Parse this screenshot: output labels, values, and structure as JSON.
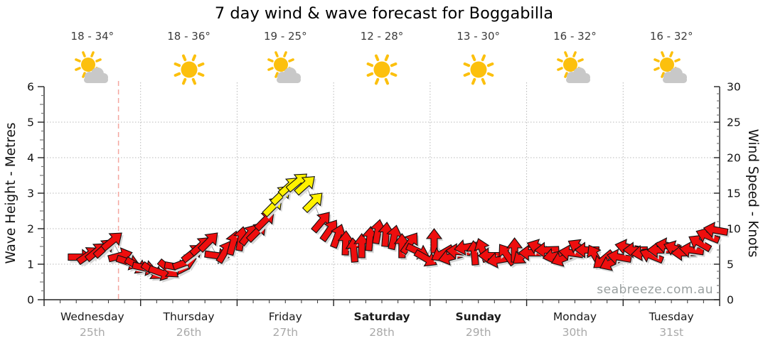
{
  "title": "7 day wind & wave forecast for Boggabilla",
  "watermark": "seabreeze.com.au",
  "axes": {
    "left_title": "Wave Height - Metres",
    "right_title": "Wind Speed - Knots",
    "left_ticks": [
      0,
      1,
      2,
      3,
      4,
      5,
      6
    ],
    "right_ticks": [
      0,
      5,
      10,
      15,
      20,
      25,
      30
    ]
  },
  "days": [
    {
      "name": "Wednesday",
      "date": "25th",
      "temp": "18 - 34°",
      "weather": "partly-cloudy",
      "weekend": false
    },
    {
      "name": "Thursday",
      "date": "26th",
      "temp": "18 - 36°",
      "weather": "sunny",
      "weekend": false
    },
    {
      "name": "Friday",
      "date": "27th",
      "temp": "19 - 25°",
      "weather": "partly-cloudy",
      "weekend": false
    },
    {
      "name": "Saturday",
      "date": "28th",
      "temp": "12 - 28°",
      "weather": "sunny",
      "weekend": true
    },
    {
      "name": "Sunday",
      "date": "29th",
      "temp": "13 - 30°",
      "weather": "sunny",
      "weekend": true
    },
    {
      "name": "Monday",
      "date": "30th",
      "temp": "16 - 32°",
      "weather": "partly-cloudy",
      "weekend": false
    },
    {
      "name": "Tuesday",
      "date": "31st",
      "temp": "16 - 32°",
      "weather": "partly-cloudy",
      "weekend": false
    }
  ],
  "chart_data": {
    "type": "line",
    "title": "7 day wind & wave forecast for Boggabilla",
    "ylabel_left": "Wave Height - Metres",
    "ylabel_right": "Wind Speed - Knots",
    "ylim_left": [
      0,
      6
    ],
    "ylim_right": [
      0,
      30
    ],
    "grid": true,
    "x_categories": [
      "Wednesday 25th",
      "Thursday 26th",
      "Friday 27th",
      "Saturday 28th",
      "Sunday 29th",
      "Monday 30th",
      "Tuesday 31st"
    ],
    "now_marker": {
      "day": 0,
      "hour": 18.5
    },
    "colors": {
      "normal": "#ee0e0e",
      "strong": "#fff100",
      "shadow": "#d7d7d7",
      "grid": "#b8b8b8",
      "now_line": "#f4a7a0",
      "sun": "#fcc00d",
      "cloud": "#c8c8c8"
    },
    "wind_columns": [
      "day_index",
      "hour",
      "knots",
      "arrow_rotation_deg_0_is_east",
      "strong_wind_flag"
    ],
    "wind": [
      [
        0,
        9,
        6.0,
        0,
        0
      ],
      [
        0,
        11,
        6.3,
        -35,
        0
      ],
      [
        0,
        13,
        6.8,
        -40,
        0
      ],
      [
        0,
        15,
        7.3,
        -42,
        0
      ],
      [
        0,
        17,
        8.3,
        -40,
        0
      ],
      [
        0,
        19,
        6.2,
        -15,
        0
      ],
      [
        0,
        21,
        5.3,
        18,
        0
      ],
      [
        0,
        23,
        4.8,
        30,
        0
      ],
      [
        1,
        1,
        4.5,
        12,
        0
      ],
      [
        1,
        3,
        4.0,
        35,
        0
      ],
      [
        1,
        5,
        3.8,
        20,
        0
      ],
      [
        1,
        7,
        4.3,
        40,
        0
      ],
      [
        1,
        9,
        4.6,
        10,
        0
      ],
      [
        1,
        11,
        5.2,
        -20,
        0
      ],
      [
        1,
        13,
        6.6,
        -38,
        0
      ],
      [
        1,
        15,
        7.6,
        -42,
        0
      ],
      [
        1,
        17,
        8.2,
        -45,
        0
      ],
      [
        1,
        19,
        6.2,
        8,
        0
      ],
      [
        1,
        21,
        6.8,
        -60,
        0
      ],
      [
        1,
        23,
        8.0,
        -75,
        0
      ],
      [
        2,
        1,
        8.6,
        -80,
        0
      ],
      [
        2,
        3,
        9.2,
        -52,
        0
      ],
      [
        2,
        5,
        9.6,
        -45,
        0
      ],
      [
        2,
        7,
        11.2,
        -45,
        0
      ],
      [
        2,
        9,
        13.2,
        -45,
        1
      ],
      [
        2,
        11,
        14.8,
        -44,
        1
      ],
      [
        2,
        13,
        16.0,
        -42,
        1
      ],
      [
        2,
        15,
        16.6,
        -40,
        1
      ],
      [
        2,
        17,
        16.2,
        -42,
        1
      ],
      [
        2,
        19,
        13.8,
        -45,
        1
      ],
      [
        2,
        21,
        11.0,
        -50,
        0
      ],
      [
        2,
        23,
        9.8,
        -55,
        0
      ],
      [
        3,
        1,
        9.0,
        -70,
        0
      ],
      [
        3,
        3,
        8.0,
        -88,
        0
      ],
      [
        3,
        5,
        7.0,
        -95,
        0
      ],
      [
        3,
        7,
        7.6,
        -90,
        0
      ],
      [
        3,
        9,
        8.6,
        -85,
        0
      ],
      [
        3,
        11,
        9.6,
        -80,
        0
      ],
      [
        3,
        13,
        9.2,
        -85,
        0
      ],
      [
        3,
        15,
        8.8,
        -78,
        0
      ],
      [
        3,
        17,
        7.6,
        -90,
        0
      ],
      [
        3,
        19,
        8.0,
        -55,
        0
      ],
      [
        3,
        21,
        6.8,
        25,
        0
      ],
      [
        3,
        23,
        5.8,
        30,
        0
      ],
      [
        4,
        1,
        8.3,
        -90,
        0
      ],
      [
        4,
        3,
        6.5,
        150,
        0
      ],
      [
        4,
        5,
        6.0,
        165,
        0
      ],
      [
        4,
        7,
        6.8,
        -175,
        0
      ],
      [
        4,
        9,
        7.4,
        170,
        0
      ],
      [
        4,
        11,
        6.6,
        -95,
        0
      ],
      [
        4,
        13,
        7.0,
        -110,
        0
      ],
      [
        4,
        15,
        6.2,
        180,
        0
      ],
      [
        4,
        17,
        5.6,
        170,
        0
      ],
      [
        4,
        19,
        6.4,
        -125,
        0
      ],
      [
        4,
        21,
        7.0,
        -90,
        0
      ],
      [
        4,
        23,
        6.2,
        140,
        0
      ],
      [
        5,
        1,
        6.6,
        180,
        0
      ],
      [
        5,
        3,
        7.4,
        -160,
        0
      ],
      [
        5,
        5,
        7.0,
        178,
        0
      ],
      [
        5,
        7,
        6.2,
        168,
        0
      ],
      [
        5,
        9,
        5.8,
        158,
        0
      ],
      [
        5,
        11,
        6.6,
        -172,
        0
      ],
      [
        5,
        13,
        7.4,
        -150,
        0
      ],
      [
        5,
        15,
        7.0,
        180,
        0
      ],
      [
        5,
        17,
        6.2,
        -120,
        0
      ],
      [
        5,
        19,
        5.6,
        140,
        0
      ],
      [
        5,
        21,
        5.2,
        155,
        0
      ],
      [
        5,
        23,
        6.0,
        -170,
        0
      ],
      [
        6,
        1,
        7.4,
        -168,
        0
      ],
      [
        6,
        3,
        7.0,
        180,
        0
      ],
      [
        6,
        5,
        6.6,
        172,
        0
      ],
      [
        6,
        7,
        6.2,
        -158,
        0
      ],
      [
        6,
        9,
        7.0,
        180,
        0
      ],
      [
        6,
        11,
        7.6,
        -170,
        0
      ],
      [
        6,
        13,
        7.2,
        -160,
        0
      ],
      [
        6,
        15,
        6.6,
        178,
        0
      ],
      [
        6,
        17,
        7.0,
        -172,
        0
      ],
      [
        6,
        19,
        8.0,
        -150,
        0
      ],
      [
        6,
        21,
        9.0,
        -158,
        0
      ],
      [
        6,
        23,
        9.8,
        -170,
        0
      ]
    ]
  }
}
